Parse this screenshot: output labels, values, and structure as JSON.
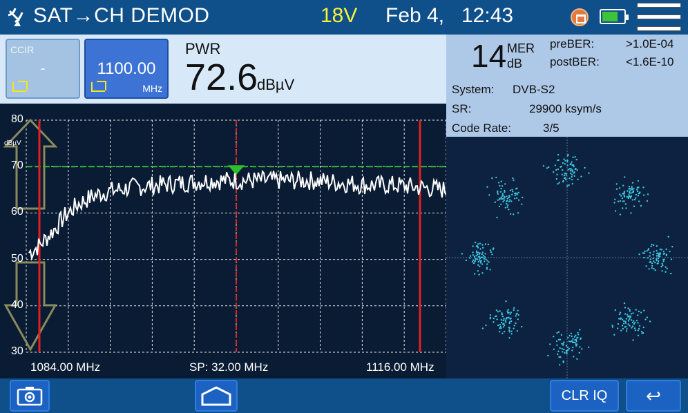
{
  "header": {
    "mode_title": "SAT→CH DEMOD",
    "voltage": "18V",
    "date": "Feb 4,",
    "time": "12:43",
    "icons": [
      "satellite-dish-icon",
      "lan-icon",
      "battery-icon",
      "menu-icon"
    ]
  },
  "band_buttons": [
    {
      "label": "CCIR",
      "value": "-",
      "unit": ""
    },
    {
      "label": "",
      "value": "1100.00",
      "unit": "MHz"
    }
  ],
  "power": {
    "label": "PWR",
    "value": "72.6",
    "unit": "dBµV"
  },
  "measurements": {
    "mer_value": "14",
    "mer_label": "MER",
    "mer_unit": "dB",
    "pre_ber_label": "preBER:",
    "pre_ber_value": ">1.0E-04",
    "post_ber_label": "postBER:",
    "post_ber_value": "<1.6E-10",
    "system_label": "System:",
    "system_value": "DVB-S2",
    "sr_label": "SR:",
    "sr_value": "29900 ksym/s",
    "code_rate_label": "Code Rate:",
    "code_rate_value": "3/5"
  },
  "chart_data": {
    "type": "line",
    "y_ticks": [
      "80",
      "70",
      "60",
      "50",
      "40",
      "30"
    ],
    "y_unit": "dBµV",
    "ylim": [
      30,
      80
    ],
    "xlim_mhz": [
      1084,
      1116
    ],
    "x_left_label": "1084.00 MHz",
    "x_span_label": "SP: 32.00 MHz",
    "x_right_label": "1116.00 MHz",
    "reference_level": 70,
    "marker_mhz": 1100,
    "channel_edges_mhz": [
      1085,
      1114
    ],
    "trace_mhz": [
      1084,
      1085,
      1086,
      1087,
      1088,
      1089,
      1090,
      1091,
      1092,
      1094,
      1096,
      1098,
      1100,
      1102,
      1104,
      1106,
      1108,
      1110,
      1112,
      1114,
      1116
    ],
    "trace_dbuv": [
      51,
      53,
      56,
      59.5,
      62,
      63.5,
      64.5,
      65,
      65.5,
      66,
      66.5,
      67,
      67,
      67,
      67,
      67,
      66.5,
      66,
      66,
      65.5,
      65
    ]
  },
  "colors": {
    "header_bg": "#0f4f8a",
    "voltage": "#f6f23a",
    "trace": "#ffffff",
    "channel_edges": "#e02020",
    "marker": "#e02020",
    "reference": "#2dbd2d",
    "constellation_points": "#3ec8e0"
  },
  "bottom_buttons": {
    "camera_icon": "camera-icon",
    "home_icon": "home-icon",
    "clr_iq_label": "CLR IQ",
    "back_label": "↩"
  }
}
